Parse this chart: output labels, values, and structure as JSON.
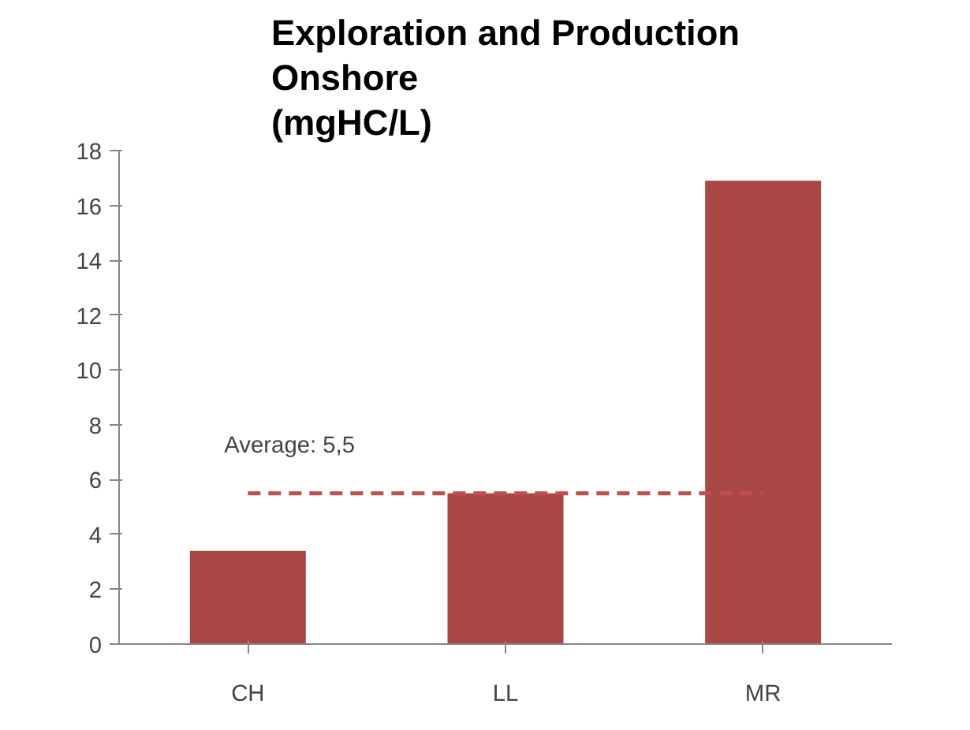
{
  "chart_data": {
    "type": "bar",
    "title": "Exploration and Production\nOnshore\n(mgHC/L)",
    "categories": [
      "CH",
      "LL",
      "MR"
    ],
    "values": [
      3.4,
      5.5,
      16.9
    ],
    "color": "#a94745",
    "ylim": [
      0,
      18
    ],
    "yticks": [
      0,
      2,
      4,
      6,
      8,
      10,
      12,
      14,
      16,
      18
    ],
    "grid": false,
    "ref_lines": [
      {
        "axis": "y",
        "value": 5.5,
        "label": "Average: 5,5",
        "color": "#c0504d",
        "line_style": "dashed"
      }
    ]
  }
}
